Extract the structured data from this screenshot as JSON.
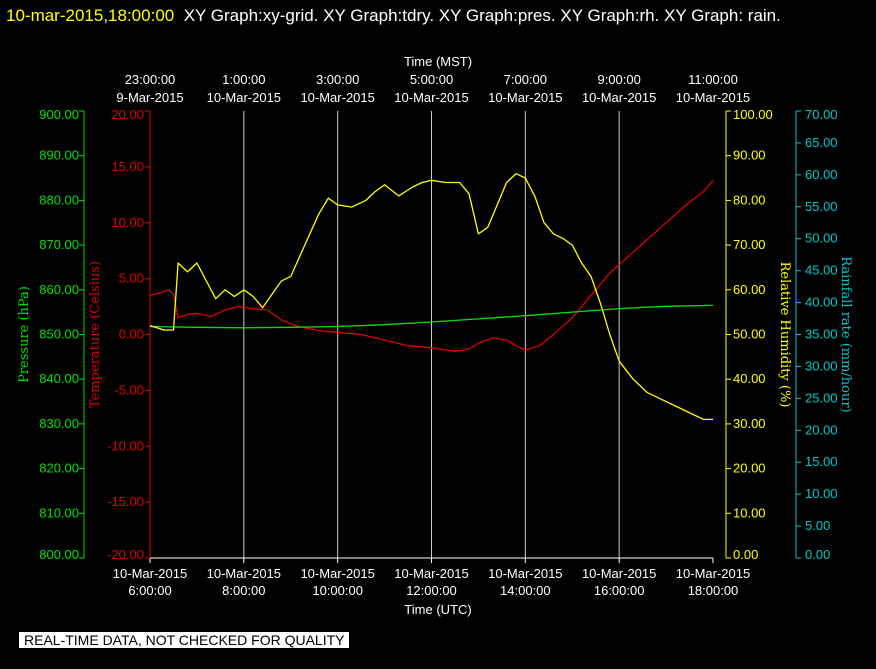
{
  "header": {
    "timestamp": "10-mar-2015,18:00:00",
    "text": "XY Graph:xy-grid.  XY Graph:tdry.  XY Graph:pres.  XY Graph:rh.  XY Graph: rain."
  },
  "notice": "REAL-TIME DATA, NOT CHECKED FOR QUALITY",
  "chart_data": {
    "type": "line",
    "bottom_axis": {
      "label": "Time (UTC)",
      "ticks": [
        {
          "line1": "10-Mar-2015",
          "line2": "6:00:00"
        },
        {
          "line1": "10-Mar-2015",
          "line2": "8:00:00"
        },
        {
          "line1": "10-Mar-2015",
          "line2": "10:00:00"
        },
        {
          "line1": "10-Mar-2015",
          "line2": "12:00:00"
        },
        {
          "line1": "10-Mar-2015",
          "line2": "14:00:00"
        },
        {
          "line1": "10-Mar-2015",
          "line2": "16:00:00"
        },
        {
          "line1": "10-Mar-2015",
          "line2": "18:00:00"
        }
      ]
    },
    "top_axis": {
      "label": "Time (MST)",
      "ticks": [
        {
          "line1": "23:00:00",
          "line2": "9-Mar-2015"
        },
        {
          "line1": "1:00:00",
          "line2": "10-Mar-2015"
        },
        {
          "line1": "3:00:00",
          "line2": "10-Mar-2015"
        },
        {
          "line1": "5:00:00",
          "line2": "10-Mar-2015"
        },
        {
          "line1": "7:00:00",
          "line2": "10-Mar-2015"
        },
        {
          "line1": "9:00:00",
          "line2": "10-Mar-2015"
        },
        {
          "line1": "11:00:00",
          "line2": "10-Mar-2015"
        }
      ]
    },
    "xlim": [
      6,
      18
    ],
    "y_axes": [
      {
        "id": "pres",
        "label": "Pressure (hPa)",
        "color": "#00e000",
        "ylim": [
          800,
          900
        ],
        "ticks": [
          "800.00",
          "810.00",
          "820.00",
          "830.00",
          "840.00",
          "850.00",
          "860.00",
          "870.00",
          "880.00",
          "890.00",
          "900.00"
        ]
      },
      {
        "id": "tdry",
        "label": "Temperature (Celsius)",
        "color": "#e00000",
        "ylim": [
          -20,
          20
        ],
        "ticks": [
          "-20.00",
          "-15.00",
          "-10.00",
          "-5.00",
          "0.00",
          "5.00",
          "10.00",
          "15.00",
          "20.00"
        ]
      },
      {
        "id": "rh",
        "label": "Relative Humidity (%)",
        "color": "#ffff00",
        "ylim": [
          0,
          100
        ],
        "ticks": [
          "0.00",
          "10.00",
          "20.00",
          "30.00",
          "40.00",
          "50.00",
          "60.00",
          "70.00",
          "80.00",
          "90.00",
          "100.00"
        ]
      },
      {
        "id": "rain",
        "label": "Rainfall rate (mm/hour)",
        "color": "#00c8c8",
        "ylim": [
          0,
          70
        ],
        "ticks": [
          "0.00",
          "5.00",
          "10.00",
          "15.00",
          "20.00",
          "25.00",
          "30.00",
          "35.00",
          "40.00",
          "45.00",
          "50.00",
          "55.00",
          "60.00",
          "65.00",
          "70.00"
        ]
      }
    ],
    "series": [
      {
        "id": "tdry",
        "axis": "tdry",
        "color": "#e00000",
        "x": [
          6.0,
          6.2,
          6.4,
          6.5,
          6.6,
          6.8,
          7.0,
          7.3,
          7.6,
          7.9,
          8.2,
          8.5,
          8.8,
          9.1,
          9.4,
          9.7,
          10.0,
          10.5,
          11.0,
          11.5,
          12.0,
          12.5,
          12.8,
          13.0,
          13.3,
          13.6,
          13.8,
          14.0,
          14.3,
          14.6,
          15.0,
          15.4,
          15.8,
          16.2,
          16.6,
          17.0,
          17.4,
          17.8,
          18.0
        ],
        "y": [
          3.5,
          3.7,
          4.0,
          3.6,
          1.5,
          1.8,
          1.9,
          1.6,
          2.2,
          2.5,
          2.3,
          2.2,
          1.3,
          0.8,
          0.5,
          0.3,
          0.2,
          0.0,
          -0.5,
          -1.0,
          -1.2,
          -1.5,
          -1.3,
          -0.8,
          -0.3,
          -0.5,
          -1.0,
          -1.4,
          -1.0,
          0.0,
          1.5,
          3.5,
          5.5,
          7.0,
          8.5,
          10.0,
          11.5,
          12.8,
          13.8
        ]
      },
      {
        "id": "pres",
        "axis": "pres",
        "color": "#00e000",
        "x": [
          6.0,
          7.0,
          8.0,
          9.0,
          10.0,
          11.0,
          12.0,
          13.0,
          14.0,
          15.0,
          16.0,
          17.0,
          18.0
        ],
        "y": [
          851.8,
          851.6,
          851.5,
          851.6,
          851.8,
          852.2,
          852.8,
          853.5,
          854.2,
          855.0,
          855.8,
          856.3,
          856.5
        ]
      },
      {
        "id": "rh",
        "axis": "rh",
        "color": "#ffff00",
        "x": [
          6.0,
          6.3,
          6.5,
          6.6,
          6.8,
          7.0,
          7.2,
          7.4,
          7.6,
          7.8,
          8.0,
          8.2,
          8.4,
          8.6,
          8.8,
          9.0,
          9.3,
          9.6,
          9.8,
          10.0,
          10.3,
          10.6,
          10.8,
          11.0,
          11.3,
          11.6,
          11.8,
          12.0,
          12.3,
          12.6,
          12.8,
          13.0,
          13.2,
          13.4,
          13.6,
          13.8,
          14.0,
          14.2,
          14.4,
          14.6,
          14.8,
          15.0,
          15.2,
          15.4,
          15.6,
          15.8,
          16.0,
          16.3,
          16.6,
          17.0,
          17.4,
          17.8,
          18.0
        ],
        "y": [
          52.0,
          51.0,
          51.0,
          66.0,
          64.0,
          66.0,
          62.0,
          58.0,
          60.0,
          58.5,
          60.0,
          58.5,
          56.0,
          59.0,
          62.0,
          63.0,
          70.0,
          77.0,
          80.5,
          79.0,
          78.5,
          80.0,
          82.0,
          83.5,
          81.0,
          83.0,
          84.0,
          84.5,
          84.0,
          84.0,
          81.5,
          72.5,
          74.0,
          79.0,
          84.0,
          86.0,
          85.0,
          81.0,
          75.0,
          72.5,
          71.5,
          70.0,
          66.0,
          63.0,
          57.0,
          50.0,
          44.0,
          40.0,
          37.0,
          35.0,
          33.0,
          31.0,
          31.0
        ]
      }
    ]
  }
}
